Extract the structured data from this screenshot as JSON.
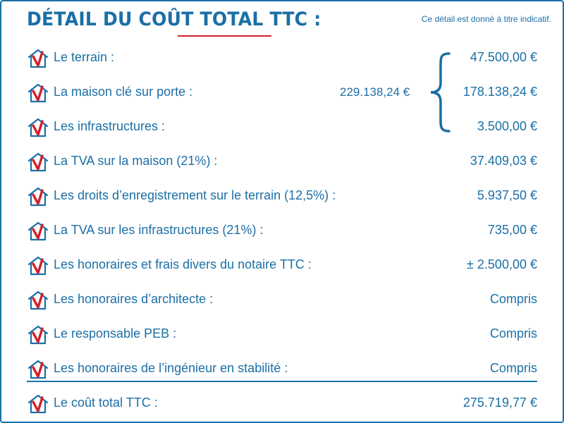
{
  "header": {
    "title_part1": "DÉTAIL DU COÛT ",
    "title_part2": "TOTAL TTC :",
    "note": "Ce détail est donné à titre indicatif."
  },
  "subtotal": "229.138,24 €",
  "rows": [
    {
      "label": "Le terrain :",
      "value": "47.500,00 €"
    },
    {
      "label": "La maison clé sur porte :",
      "value": "178.138,24 €"
    },
    {
      "label": "Les infrastructures :",
      "value": "3.500,00 €"
    },
    {
      "label": "La TVA sur la maison (21%) :",
      "value": "37.409,03 €"
    },
    {
      "label": "Les droits d’enregistrement sur le terrain (12,5%) :",
      "value": "5.937,50 €"
    },
    {
      "label": "La TVA sur les infrastructures (21%) :",
      "value": "735,00 €"
    },
    {
      "label": "Les honoraires et frais divers du notaire TTC :",
      "value": "± 2.500,00 €"
    },
    {
      "label": "Les honoraires d’architecte :",
      "value": "Compris"
    },
    {
      "label": "Le responsable PEB :",
      "value": "Compris"
    },
    {
      "label": "Les honoraires de l’ingénieur en stabilité :",
      "value": "Compris"
    }
  ],
  "total": {
    "label": "Le coût total TTC :",
    "value": "275.719,77 €"
  },
  "colors": {
    "primary": "#1b6fa6",
    "accent": "#d21f2a"
  },
  "icons": {
    "row_marker": "house-check-icon",
    "group_brace": "curly-brace-icon"
  }
}
